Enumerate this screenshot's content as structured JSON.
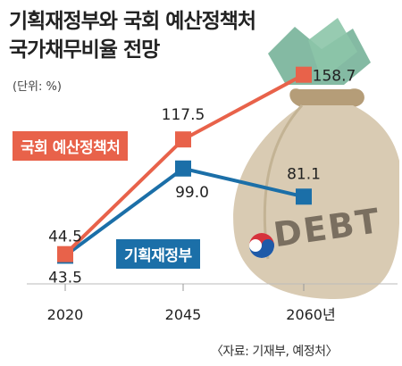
{
  "title_line1": "기획재정부와 국회 예산정책처",
  "title_line2": "국가채무비율 전망",
  "unit": "(단위: %)",
  "source": "〈자료: 기재부, 예정처〉",
  "bag_text": "DEBT",
  "colors": {
    "red": "#e8624a",
    "blue": "#1b6fa8",
    "bag": "#d9cbb3",
    "bag_dark": "#b9a686"
  },
  "chart_data": {
    "type": "line",
    "x": [
      "2020",
      "2045",
      "2060년"
    ],
    "series": [
      {
        "name": "국회 예산정책처",
        "values": [
          44.5,
          117.5,
          158.7
        ],
        "labels": [
          "44.5",
          "117.5",
          "158.7"
        ],
        "color": "#e8624a"
      },
      {
        "name": "기획재정부",
        "values": [
          43.5,
          99.0,
          81.1
        ],
        "labels": [
          "43.5",
          "99.0",
          "81.1"
        ],
        "color": "#1b6fa8"
      }
    ],
    "ylim": [
      0,
      180
    ]
  }
}
